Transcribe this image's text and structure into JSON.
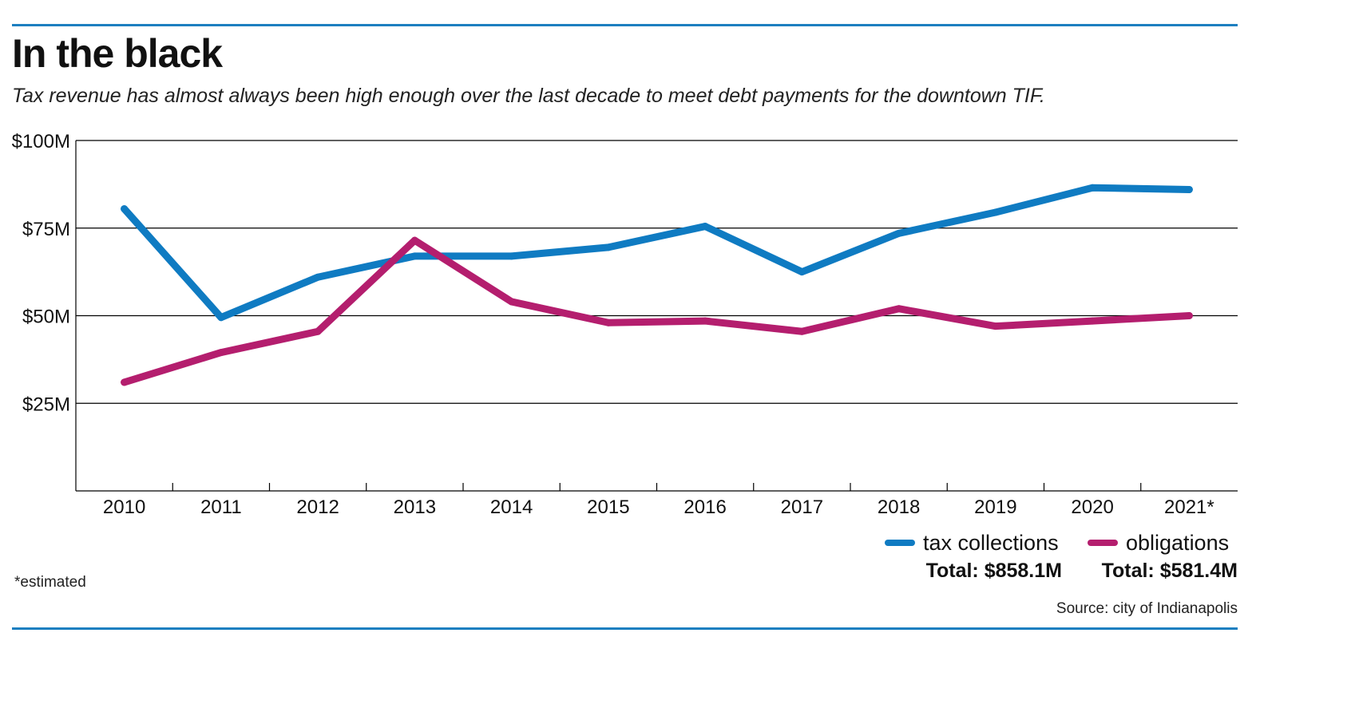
{
  "colors": {
    "rule": "#1c7fc0",
    "tax": "#0f7bc2",
    "obligations": "#b41e6e",
    "grid": "#000000"
  },
  "header": {
    "title": "In the black",
    "subtitle": "Tax revenue has almost always been high enough over the last decade to meet debt payments for the downtown TIF."
  },
  "legend": {
    "tax_label": "tax collections",
    "tax_total": "Total: $858.1M",
    "obligations_label": "obligations",
    "obligations_total": "Total: $581.4M"
  },
  "footnote": "*estimated",
  "source": "Source: city of Indianapolis",
  "chart_data": {
    "type": "line",
    "title": "In the black",
    "subtitle": "Tax revenue has almost always been high enough over the last decade to meet debt payments for the downtown TIF.",
    "categories": [
      "2010",
      "2011",
      "2012",
      "2013",
      "2014",
      "2015",
      "2016",
      "2017",
      "2018",
      "2019",
      "2020",
      "2021*"
    ],
    "ylim": [
      0,
      100
    ],
    "yticks": [
      25,
      50,
      75,
      100
    ],
    "ytick_labels": [
      "$25M",
      "$50M",
      "$75M",
      "$100M"
    ],
    "grid": "horizontal",
    "legend_position": "bottom-right",
    "series": [
      {
        "name": "tax collections",
        "color": "#0f7bc2",
        "values": [
          80.5,
          49.5,
          61.0,
          67.0,
          67.0,
          69.5,
          75.5,
          62.5,
          73.5,
          79.5,
          86.5,
          86.0
        ]
      },
      {
        "name": "obligations",
        "color": "#b41e6e",
        "values": [
          31.0,
          39.5,
          45.5,
          71.5,
          54.0,
          48.0,
          48.5,
          45.5,
          52.0,
          47.0,
          48.5,
          50.0
        ]
      }
    ]
  }
}
